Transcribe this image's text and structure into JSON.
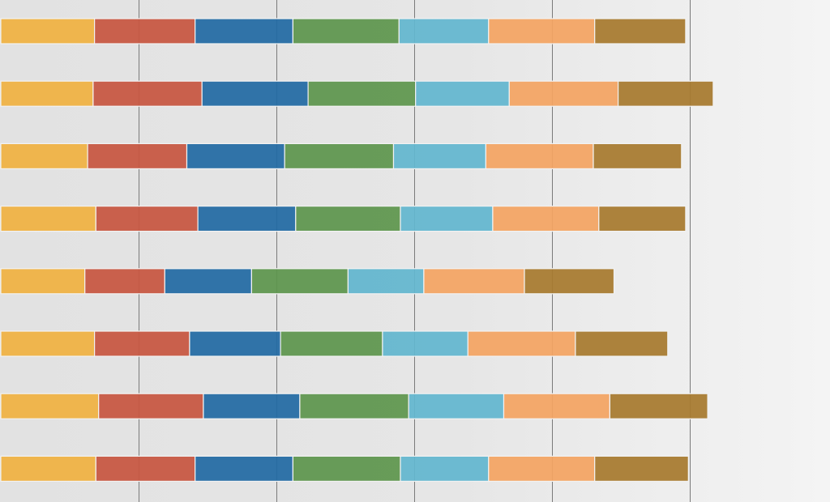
{
  "chart_data": {
    "type": "bar",
    "orientation": "horizontal",
    "stacked": true,
    "title": "",
    "xlabel": "",
    "ylabel": "",
    "xlim": [
      0,
      5
    ],
    "grid": true,
    "legend": "none",
    "category_count": 8,
    "series_colors": [
      "#f0b142",
      "#c75641",
      "#226aa4",
      "#5e964d",
      "#62b6cf",
      "#f3a462",
      "#a77a2e"
    ],
    "series": [
      {
        "values": [
          0.68,
          0.67,
          0.63,
          0.69,
          0.61,
          0.68,
          0.71,
          0.69
        ]
      },
      {
        "values": [
          0.73,
          0.79,
          0.72,
          0.74,
          0.58,
          0.69,
          0.76,
          0.72
        ]
      },
      {
        "values": [
          0.71,
          0.77,
          0.71,
          0.71,
          0.63,
          0.66,
          0.7,
          0.71
        ]
      },
      {
        "values": [
          0.77,
          0.78,
          0.79,
          0.76,
          0.7,
          0.74,
          0.79,
          0.78
        ]
      },
      {
        "values": [
          0.65,
          0.68,
          0.67,
          0.67,
          0.55,
          0.62,
          0.69,
          0.64
        ]
      },
      {
        "values": [
          0.77,
          0.79,
          0.78,
          0.77,
          0.73,
          0.78,
          0.77,
          0.77
        ]
      },
      {
        "values": [
          0.66,
          0.69,
          0.64,
          0.63,
          0.65,
          0.67,
          0.71,
          0.68
        ]
      }
    ]
  }
}
